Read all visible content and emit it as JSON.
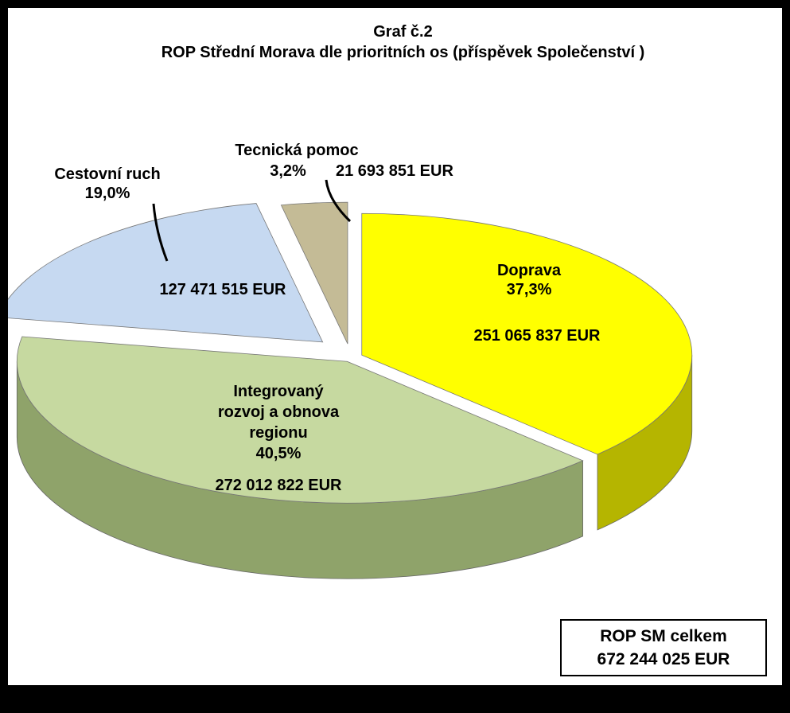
{
  "chart_data": {
    "type": "pie",
    "title": "Graf č.2",
    "subtitle": "ROP Střední Morava  dle prioritních os (příspěvek Společenství )",
    "slices": [
      {
        "name": "Doprava",
        "percent_label": "37,3%",
        "value_label": "251 065 837 EUR",
        "value": 251065837,
        "color": "#ffff00",
        "side_color": "#b5b500"
      },
      {
        "name": "Integrovaný rozvoj a obnova regionu",
        "name_lines": [
          "Integrovaný",
          "rozvoj a obnova",
          "regionu"
        ],
        "percent_label": "40,5%",
        "value_label": "272 012 822 EUR",
        "value": 272012822,
        "color": "#c6d9a0",
        "side_color": "#8fa36a"
      },
      {
        "name": "Cestovní ruch",
        "percent_label": "19,0%",
        "value_label": "127 471 515 EUR",
        "value": 127471515,
        "color": "#c6d9f1",
        "side_color": "#555a66"
      },
      {
        "name": "Tecnická pomoc",
        "percent_label": "3,2%",
        "value_label": "21 693 851 EUR",
        "value": 21693851,
        "color": "#c4bb96",
        "side_color": "#8a8163"
      }
    ]
  },
  "total_box": {
    "label": "ROP SM celkem",
    "value_label": "672 244 025 EUR"
  }
}
